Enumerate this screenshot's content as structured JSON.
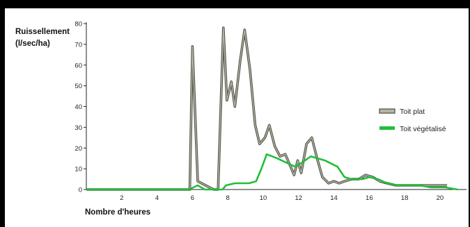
{
  "chart_data": {
    "type": "line",
    "ylabel_lines": [
      "Ruissellement",
      "(l/sec/ha)"
    ],
    "xlabel": "Nombre d'heures",
    "xlim": [
      0,
      21.5
    ],
    "ylim": [
      0,
      80
    ],
    "xticks": [
      2,
      4,
      6,
      8,
      10,
      12,
      14,
      16,
      18,
      20
    ],
    "yticks": [
      0,
      10,
      20,
      30,
      40,
      50,
      60,
      70,
      80
    ],
    "grid": false,
    "legend_position": "right",
    "series": [
      {
        "name": "Toit plat",
        "color": "#7a7a6a",
        "x": [
          0,
          5.85,
          6.0,
          6.3,
          7.2,
          7.45,
          7.75,
          7.95,
          8.2,
          8.4,
          8.7,
          8.95,
          9.25,
          9.55,
          9.8,
          10.1,
          10.35,
          10.65,
          10.95,
          11.25,
          11.55,
          11.75,
          11.95,
          12.15,
          12.45,
          12.75,
          13.05,
          13.35,
          13.7,
          14.0,
          14.3,
          14.6,
          15.0,
          15.4,
          15.8,
          16.2,
          16.6,
          17.0,
          17.5,
          18.0,
          18.5,
          19.0,
          19.5,
          20.0,
          20.4
        ],
        "y": [
          0,
          0,
          69,
          4,
          0,
          0,
          78,
          43,
          52,
          40,
          62,
          77,
          58,
          31,
          22,
          25,
          31,
          21,
          16,
          17,
          11,
          7,
          14,
          8,
          22,
          25,
          15,
          6,
          3,
          4,
          3,
          4,
          5,
          5,
          7,
          6,
          4,
          3,
          2,
          2,
          2,
          2,
          2,
          2,
          2
        ]
      },
      {
        "name": "Toit végétalisé",
        "color": "#1fbf3a",
        "x": [
          0,
          5.8,
          6.3,
          6.7,
          7.7,
          7.9,
          8.4,
          8.8,
          9.2,
          9.6,
          9.9,
          10.2,
          10.8,
          11.3,
          11.8,
          12.2,
          12.7,
          13.5,
          14.2,
          14.6,
          15.0,
          15.6,
          16.0,
          16.5,
          17.0,
          17.5,
          18.0,
          18.8,
          19.5,
          20.3,
          21.0
        ],
        "y": [
          0,
          0,
          2,
          0,
          0,
          2,
          3,
          3,
          3,
          4,
          10,
          17,
          15,
          13,
          11,
          13,
          16,
          14,
          11,
          6,
          5,
          5,
          6,
          5,
          3,
          2,
          2,
          2,
          1,
          1,
          0
        ]
      }
    ]
  }
}
